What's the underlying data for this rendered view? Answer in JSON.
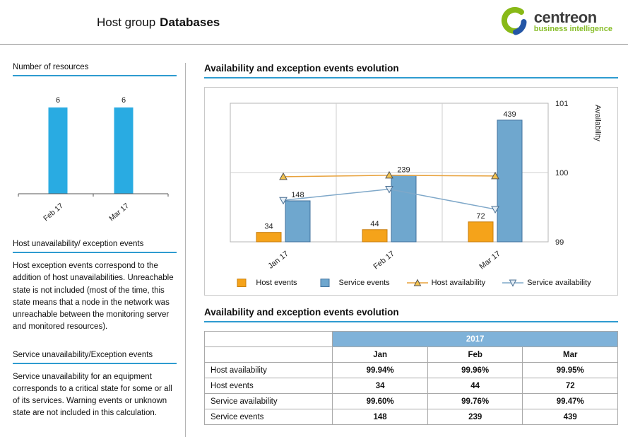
{
  "header": {
    "title_prefix": "Host group",
    "title_bold": "Databases",
    "logo": {
      "name": "centreon",
      "tagline": "business intelligence",
      "green": "#88B917",
      "blue": "#2456A6"
    }
  },
  "accent_color": "#2E9BD0",
  "sidebar": {
    "resources": {
      "title": "Number of resources"
    },
    "host_section": {
      "title": "Host unavailability/ exception events",
      "body": "Host exception events correspond to the addition of host unavailabilities. Unreachable state is not included (most of the time, this state means that a node in the network was unreachable between the monitoring server and monitored resources)."
    },
    "service_section": {
      "title": "Service unavailability/Exception events",
      "body": "Service unavailability for an equipment corresponds to a critical state for some or all of its services. Warning events or unknown state are not included in this calculation."
    }
  },
  "main": {
    "chart_title": "Availability and exception events evolution",
    "table_title": "Availability and exception events evolution",
    "legend": [
      {
        "label": "Host events",
        "type": "bar",
        "color": "#F5A31A",
        "stroke": "#C87F10"
      },
      {
        "label": "Service events",
        "type": "bar",
        "color": "#6FA7CE",
        "stroke": "#41719C"
      },
      {
        "label": "Host availability",
        "type": "line",
        "color": "#E8A23C",
        "marker": "triangle-up",
        "marker_fill": "#F2C24E",
        "marker_stroke": "#555555"
      },
      {
        "label": "Service availability",
        "type": "line",
        "color": "#7FA8C9",
        "marker": "triangle-down",
        "marker_fill": "#E4EEF6",
        "marker_stroke": "#4A6F92"
      }
    ]
  },
  "table": {
    "year_header": "2017",
    "columns": [
      "Jan",
      "Feb",
      "Mar"
    ],
    "rows": [
      {
        "label": "Host availability",
        "values": [
          "99.94%",
          "99.96%",
          "99.95%"
        ]
      },
      {
        "label": "Host events",
        "values": [
          "34",
          "44",
          "72"
        ]
      },
      {
        "label": "Service availability",
        "values": [
          "99.60%",
          "99.76%",
          "99.47%"
        ]
      },
      {
        "label": "Service events",
        "values": [
          "148",
          "239",
          "439"
        ]
      }
    ]
  },
  "chart_data": [
    {
      "type": "bar",
      "title": "Number of resources",
      "categories": [
        "Feb 17",
        "Mar 17"
      ],
      "values": [
        6,
        6
      ],
      "color": "#29ABE2",
      "ylim": [
        0,
        6
      ],
      "grid": false,
      "legend_position": "none"
    },
    {
      "type": "bar",
      "title": "Availability and exception events evolution",
      "categories": [
        "Jan 17",
        "Feb 17",
        "Mar 17"
      ],
      "series": [
        {
          "name": "Host events",
          "type": "bar",
          "axis": "left",
          "values": [
            34,
            44,
            72
          ],
          "color": "#F5A31A",
          "stroke": "#C87F10"
        },
        {
          "name": "Service events",
          "type": "bar",
          "axis": "left",
          "values": [
            148,
            239,
            439
          ],
          "color": "#6FA7CE",
          "stroke": "#41719C"
        },
        {
          "name": "Host availability",
          "type": "line",
          "axis": "right",
          "values": [
            99.94,
            99.96,
            99.95
          ],
          "color": "#E8A23C",
          "marker": "triangle-up",
          "marker_fill": "#F2C24E",
          "marker_stroke": "#555555"
        },
        {
          "name": "Service availability",
          "type": "line",
          "axis": "right",
          "values": [
            99.6,
            99.76,
            99.47
          ],
          "color": "#7FA8C9",
          "marker": "triangle-down",
          "marker_fill": "#E4EEF6",
          "marker_stroke": "#4A6F92"
        }
      ],
      "left_axis": {
        "label": "",
        "range": [
          0,
          500
        ],
        "visible": false
      },
      "right_axis": {
        "label": "Availability",
        "range": [
          99,
          101
        ],
        "ticks": [
          99,
          100,
          101
        ]
      },
      "grid": true,
      "legend_position": "bottom"
    }
  ]
}
